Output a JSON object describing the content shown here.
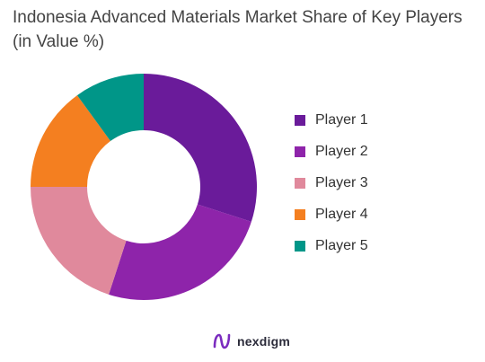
{
  "chart_data": {
    "type": "pie",
    "title": "Indonesia Advanced Materials Market Share of Key Players (in Value %)",
    "categories": [
      "Player 1",
      "Player 2",
      "Player 3",
      "Player 4",
      "Player 5"
    ],
    "values": [
      30,
      25,
      20,
      15,
      10
    ],
    "colors": [
      "#6a1b9a",
      "#8e24aa",
      "#e0899c",
      "#f47f20",
      "#009688"
    ],
    "donut": true,
    "legend_position": "right"
  },
  "brand": {
    "name": "nexdigm",
    "logo_icon": "nexdigm-logo-icon",
    "logo_color": "#7b2cbf"
  }
}
